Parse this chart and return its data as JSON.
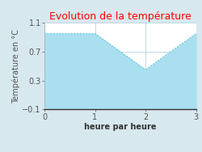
{
  "title": "Evolution de la température",
  "title_color": "#ff0000",
  "xlabel": "heure par heure",
  "ylabel": "Température en °C",
  "x": [
    0,
    1,
    2,
    3
  ],
  "y": [
    0.95,
    0.95,
    0.45,
    0.95
  ],
  "xlim": [
    0,
    3
  ],
  "ylim": [
    -0.1,
    1.1
  ],
  "yticks": [
    -0.1,
    0.3,
    0.7,
    1.1
  ],
  "xticks": [
    0,
    1,
    2,
    3
  ],
  "line_color": "#5bc8dc",
  "fill_color": "#aadff0",
  "fill_alpha": 1.0,
  "background_color": "#d8e8ef",
  "plot_bg_color": "#ffffff",
  "grid_color": "#aac8d8",
  "title_fontsize": 9,
  "label_fontsize": 7,
  "tick_fontsize": 7,
  "ylabel_fontsize": 7
}
